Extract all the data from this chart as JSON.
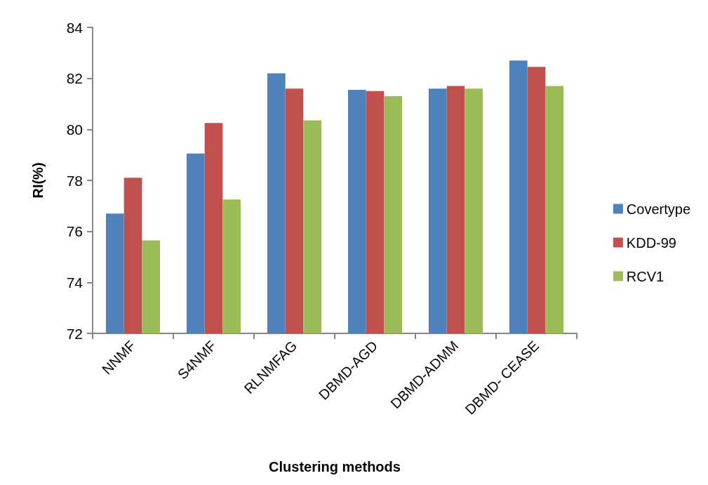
{
  "chart_data": {
    "type": "bar",
    "xlabel": "Clustering methods",
    "ylabel": "RI(%)",
    "categories": [
      "NNMF",
      "S4NMF",
      "RLNMFAG",
      "DBMD-AGD",
      "DBMD-ADMM",
      "DBMD- CEASE"
    ],
    "series": [
      {
        "name": "Covertype",
        "color": "#4f81bd",
        "values": [
          76.7,
          79.05,
          82.2,
          81.55,
          81.6,
          82.7
        ]
      },
      {
        "name": "KDD-99",
        "color": "#c0504d",
        "values": [
          78.1,
          80.25,
          81.6,
          81.5,
          81.7,
          82.45
        ]
      },
      {
        "name": "RCV1",
        "color": "#9bbb59",
        "values": [
          75.65,
          77.25,
          80.35,
          81.3,
          81.6,
          81.7
        ]
      }
    ],
    "ylim": [
      72,
      84
    ],
    "yticks": [
      72,
      74,
      76,
      78,
      80,
      82,
      84
    ],
    "grid": false,
    "legend": "right"
  }
}
